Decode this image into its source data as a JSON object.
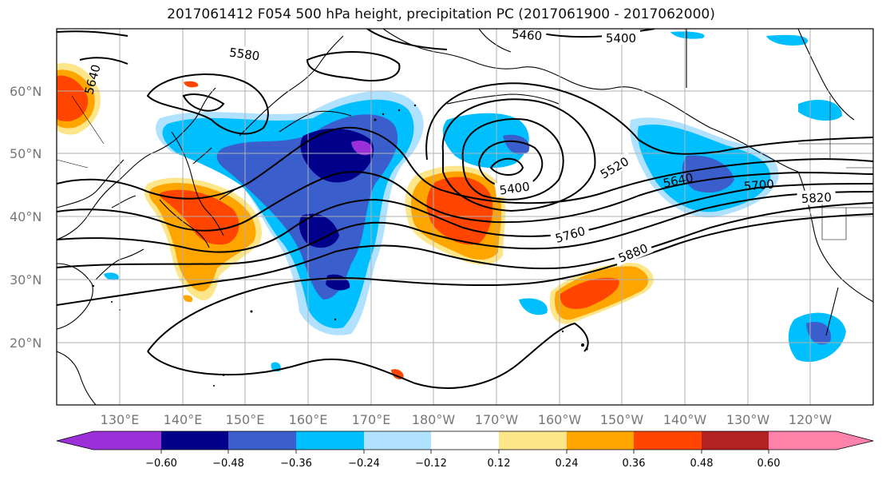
{
  "title": "2017061412 F054 500 hPa height, precipitation PC (2017061900 - 2017062000)",
  "lat_labels": [
    "60°N",
    "50°N",
    "40°N",
    "30°N",
    "20°N"
  ],
  "lon_labels": [
    "130°E",
    "140°E",
    "150°E",
    "160°E",
    "170°E",
    "180°W",
    "170°W",
    "160°W",
    "150°W",
    "140°W",
    "130°W",
    "120°W"
  ],
  "contour_labels": [
    "5400",
    "5460",
    "5400",
    "5520",
    "5580",
    "5640",
    "5640",
    "5700",
    "5760",
    "5820",
    "5880"
  ],
  "colorbar": {
    "tick_labels": [
      "−0.60",
      "−0.48",
      "−0.36",
      "−0.24",
      "−0.12",
      "0.12",
      "0.24",
      "0.36",
      "0.48",
      "0.60"
    ],
    "colors": [
      "#9b30d9",
      "#00008b",
      "#3a5fcd",
      "#00bfff",
      "#b0e2ff",
      "#ffffff",
      "#fde68a",
      "#ffa500",
      "#ff4500",
      "#b22222",
      "#ff82ab"
    ]
  },
  "palette": {
    "light_blue": "#b0e2ff",
    "sky": "#00bfff",
    "mid_blue": "#3a5fcd",
    "navy": "#00008b",
    "purple": "#9b30d9",
    "yellow": "#fde68a",
    "orange": "#ffa500",
    "red_orange": "#ff4500"
  }
}
